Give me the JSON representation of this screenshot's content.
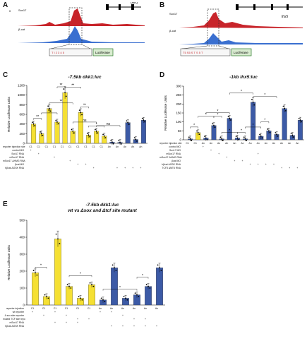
{
  "panel_a": {
    "letter": "A",
    "gene_label": "dkk1",
    "track1_label": "Sox17",
    "track2_label": "β-cat",
    "track1_scale": "0",
    "reporter_sites": "T  I  2  3  4  5",
    "reporter_label": "Luciferase"
  },
  "panel_b": {
    "letter": "B",
    "gene_label": "lhx5",
    "track1_label": "Sox17",
    "track2_label": "β-cat",
    "reporter_sites": "T5 S5 S  T  S  5  T",
    "reporter_label": "Luciferase"
  },
  "panel_c": {
    "letter": "C",
    "title": "-7.5kb dkk1:luc"
  },
  "panel_d": {
    "letter": "D",
    "title": "-1kb lhx5:luc"
  },
  "panel_e": {
    "letter": "E",
    "title_line1": "-7.5kb dkk1:luc",
    "title_line2": "wt vs Δsox and Δtcf site mutant"
  },
  "colors": {
    "yellow": "#f5e033",
    "blue": "#3c5aa6",
    "red": "#c8242a",
    "track_blue": "#3a6fd0"
  },
  "chart_data": [
    {
      "type": "bar",
      "panel": "C",
      "title": "-7.5kb dkk1:luc",
      "ylabel": "Relative Luciferase Units",
      "ylim": [
        0,
        1200
      ],
      "yticks": [
        "0",
        "200",
        "400",
        "600",
        "800",
        "1000",
        "1200"
      ],
      "categories": [
        "C1",
        "C1",
        "C1",
        "C1",
        "C1",
        "C1",
        "C1",
        "C1",
        "C1",
        "C1",
        "An",
        "An",
        "An",
        "An",
        "An"
      ],
      "values": [
        400,
        200,
        720,
        440,
        1050,
        250,
        640,
        170,
        250,
        150,
        25,
        20,
        430,
        80,
        480
      ],
      "colors": [
        "y",
        "y",
        "y",
        "y",
        "y",
        "y",
        "y",
        "y",
        "y",
        "y",
        "b",
        "b",
        "b",
        "b",
        "b"
      ],
      "significance": [
        "**",
        "**",
        "**",
        "**",
        "**",
        "ns",
        "**",
        "*",
        "ns"
      ],
      "table_rows": [
        {
          "label": "reporter injection site",
          "cells": [
            "C1",
            "C1",
            "C1",
            "C1",
            "C1",
            "C1",
            "C1",
            "C1",
            "C1",
            "C1",
            "An",
            "An",
            "An",
            "An",
            "An"
          ]
        },
        {
          "label": "control MO",
          "cells": [
            "+",
            "",
            "",
            "",
            "",
            "",
            "",
            "",
            "",
            "",
            "",
            "",
            "",
            "",
            ""
          ]
        },
        {
          "label": "Sox17 RNA",
          "cells": [
            "",
            "+",
            "",
            "",
            "",
            "",
            "",
            "",
            "",
            "",
            "",
            "",
            "",
            "",
            ""
          ]
        },
        {
          "label": "mSox17 RNA",
          "cells": [
            "",
            "",
            "",
            "+",
            "",
            "",
            "",
            "",
            "",
            "",
            "",
            "",
            "",
            "",
            ""
          ]
        },
        {
          "label": "mSox17 ΔHMG RNA",
          "cells": [
            "",
            "",
            "",
            "",
            "",
            "+",
            "",
            "",
            "",
            "",
            "",
            "",
            "",
            "",
            ""
          ]
        },
        {
          "label": "βcat MO",
          "cells": [
            "",
            "",
            "",
            "",
            "",
            "",
            "+",
            "+",
            "",
            "",
            "",
            "",
            "",
            "",
            ""
          ]
        },
        {
          "label": "hβcat ΔGSK RNA",
          "cells": [
            "",
            "",
            "",
            "",
            "",
            "",
            "",
            "",
            "+",
            "",
            "",
            "+",
            "+",
            "+",
            "+"
          ]
        }
      ]
    },
    {
      "type": "bar",
      "panel": "D",
      "title": "-1kb lhx5:luc",
      "ylabel": "Relative Luciferase Units",
      "ylim": [
        0,
        300
      ],
      "yticks": [
        "0",
        "50",
        "100",
        "150",
        "200",
        "250",
        "300"
      ],
      "categories": [
        "C1",
        "C1",
        "An",
        "An",
        "An",
        "An",
        "An",
        "An",
        "An",
        "An",
        "An",
        "An",
        "An",
        "An",
        "An"
      ],
      "values": [
        5,
        40,
        10,
        80,
        5,
        120,
        10,
        5,
        210,
        20,
        50,
        30,
        175,
        25,
        110
      ],
      "colors": [
        "b",
        "y",
        "b",
        "b",
        "b",
        "b",
        "b",
        "b",
        "b",
        "b",
        "b",
        "b",
        "b",
        "b",
        "b"
      ],
      "significance": [
        "*",
        "*",
        "*",
        "*",
        "*",
        "*",
        "*",
        "*",
        "*",
        "*"
      ],
      "table_rows": [
        {
          "label": "reporter injection site",
          "cells": [
            "C1",
            "C1",
            "An",
            "An",
            "An",
            "An",
            "An",
            "An",
            "An",
            "An",
            "An",
            "An",
            "An",
            "An",
            "An"
          ]
        },
        {
          "label": "control MO",
          "cells": [
            "",
            "",
            "+",
            "",
            "",
            "",
            "",
            "",
            "",
            "",
            "",
            "",
            "",
            "",
            ""
          ]
        },
        {
          "label": "Sox17 MO",
          "cells": [
            "",
            "",
            "",
            "+",
            "",
            "",
            "",
            "",
            "",
            "",
            "",
            "",
            "",
            "",
            ""
          ]
        },
        {
          "label": "mSox17 RNA",
          "cells": [
            "",
            "",
            "",
            "",
            "+",
            "",
            "",
            "",
            "",
            "+",
            "",
            "",
            "",
            "",
            ""
          ]
        },
        {
          "label": "mSox17 ΔHMG RNA",
          "cells": [
            "",
            "",
            "",
            "",
            "",
            "+",
            "",
            "",
            "",
            "",
            "",
            "",
            "",
            "",
            ""
          ]
        },
        {
          "label": "βcat MO",
          "cells": [
            "",
            "",
            "",
            "",
            "",
            "",
            "+",
            "+",
            "",
            "",
            "",
            "",
            "",
            "",
            ""
          ]
        },
        {
          "label": "hβcat ΔGSK RNA",
          "cells": [
            "",
            "",
            "",
            "",
            "",
            "",
            "",
            "",
            "+",
            "+",
            "+",
            "+",
            "",
            "",
            ""
          ]
        },
        {
          "label": "TCF3 ΔMT6 RNA",
          "cells": [
            "",
            "",
            "",
            "",
            "",
            "",
            "",
            "",
            "",
            "",
            "",
            "",
            "+",
            "+",
            "+"
          ]
        }
      ]
    },
    {
      "type": "bar",
      "panel": "E",
      "title": "-7.5kb dkk1:luc wt vs Δsox and Δtcf site mutant",
      "ylabel": "Relative Luciferase Units",
      "ylim": [
        0,
        500
      ],
      "yticks": [
        "0",
        "100",
        "200",
        "300",
        "400",
        "500"
      ],
      "categories": [
        "C1",
        "C1",
        "C1",
        "C1",
        "C1",
        "C1",
        "An",
        "An",
        "An",
        "An",
        "An",
        "An"
      ],
      "values": [
        190,
        50,
        390,
        110,
        40,
        120,
        30,
        220,
        40,
        60,
        110,
        220
      ],
      "colors": [
        "y",
        "y",
        "y",
        "y",
        "y",
        "y",
        "b",
        "b",
        "b",
        "b",
        "b",
        "b"
      ],
      "significance": [
        "*",
        "*",
        "*",
        "*"
      ],
      "table_rows": [
        {
          "label": "reporter injection",
          "cells": [
            "C1",
            "C1",
            "C1",
            "C1",
            "C1",
            "C1",
            "An",
            "An",
            "An",
            "An",
            "An",
            "An"
          ]
        },
        {
          "label": "wt reporter",
          "cells": [
            "+",
            "",
            "+",
            "",
            "",
            "",
            "+",
            "+",
            "",
            "",
            "",
            ""
          ]
        },
        {
          "label": "Δ sox site reporter",
          "cells": [
            "",
            "+",
            "",
            "+",
            "",
            "",
            "",
            "",
            "+",
            "",
            "",
            ""
          ]
        },
        {
          "label": "mutant TCF site reporter",
          "cells": [
            "",
            "",
            "",
            "",
            "+",
            "+",
            "",
            "",
            "",
            "+",
            "+",
            ""
          ]
        },
        {
          "label": "mSox17 RNA",
          "cells": [
            "",
            "",
            "+",
            "+",
            "+",
            "",
            "",
            "",
            "",
            "",
            "",
            ""
          ]
        },
        {
          "label": "hβcat ΔGSK RNA",
          "cells": [
            "",
            "",
            "",
            "",
            "",
            "",
            "",
            "+",
            "+",
            "+",
            "+",
            "+"
          ]
        }
      ]
    }
  ]
}
